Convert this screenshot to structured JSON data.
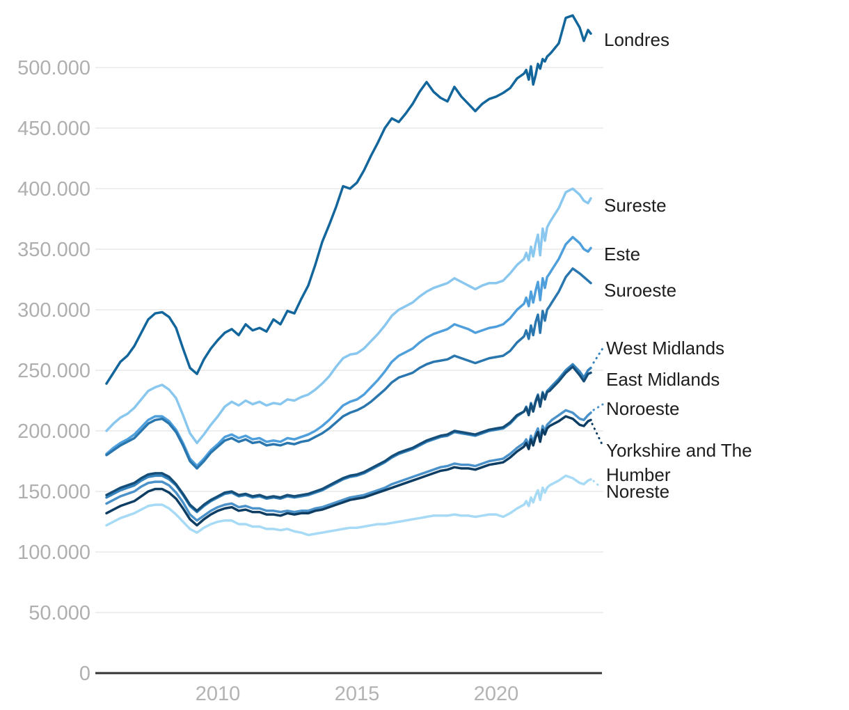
{
  "chart_data": {
    "type": "line",
    "title": "",
    "grid": "horizontal",
    "legend_position": "right-edge-annotations",
    "xlim": [
      2006,
      2023.4
    ],
    "ylim": [
      0,
      545000
    ],
    "style": {
      "background": "#ffffff",
      "grid_color": "#e9e9e9",
      "axis_color": "#333333",
      "tick_label_color": "#b0b0b0",
      "label_color": "#1d1d1d"
    },
    "x_ticks": [
      {
        "value": 2010,
        "label": "2010"
      },
      {
        "value": 2015,
        "label": "2015"
      },
      {
        "value": 2020,
        "label": "2020"
      }
    ],
    "y_ticks": [
      {
        "value": 0,
        "label": "0"
      },
      {
        "value": 50000,
        "label": "50.000"
      },
      {
        "value": 100000,
        "label": "100.000"
      },
      {
        "value": 150000,
        "label": "150.000"
      },
      {
        "value": 200000,
        "label": "200.000"
      },
      {
        "value": 250000,
        "label": "250.000"
      },
      {
        "value": 300000,
        "label": "300.000"
      },
      {
        "value": 350000,
        "label": "350.000"
      },
      {
        "value": 400000,
        "label": "400.000"
      },
      {
        "value": 450000,
        "label": "450.000"
      },
      {
        "value": 500000,
        "label": "500.000"
      }
    ],
    "x": [
      2006,
      2006.25,
      2006.5,
      2006.75,
      2007,
      2007.25,
      2007.5,
      2007.75,
      2008,
      2008.25,
      2008.5,
      2008.75,
      2009,
      2009.25,
      2009.5,
      2009.75,
      2010,
      2010.25,
      2010.5,
      2010.75,
      2011,
      2011.25,
      2011.5,
      2011.75,
      2012,
      2012.25,
      2012.5,
      2012.75,
      2013,
      2013.25,
      2013.5,
      2013.75,
      2014,
      2014.25,
      2014.5,
      2014.75,
      2015,
      2015.25,
      2015.5,
      2015.75,
      2016,
      2016.25,
      2016.5,
      2016.75,
      2017,
      2017.25,
      2017.5,
      2017.75,
      2018,
      2018.25,
      2018.5,
      2018.75,
      2019,
      2019.25,
      2019.5,
      2019.75,
      2020,
      2020.25,
      2020.5,
      2020.75,
      2021,
      2021.08,
      2021.17,
      2021.25,
      2021.33,
      2021.42,
      2021.5,
      2021.58,
      2021.67,
      2021.75,
      2021.83,
      2021.92,
      2022,
      2022.25,
      2022.5,
      2022.75,
      2023,
      2023.15,
      2023.3,
      2023.4
    ],
    "series": [
      {
        "name": "Noreste",
        "color": "#a6daf5",
        "values": [
          122000,
          125000,
          128000,
          130000,
          132000,
          135000,
          138000,
          139000,
          139000,
          136000,
          131000,
          125000,
          119000,
          116000,
          120000,
          123000,
          125000,
          126000,
          126000,
          123000,
          123000,
          121000,
          121000,
          119000,
          119000,
          118000,
          119000,
          117000,
          116000,
          114000,
          115000,
          116000,
          117000,
          118000,
          119000,
          120000,
          120000,
          121000,
          122000,
          123000,
          123000,
          124000,
          125000,
          126000,
          127000,
          128000,
          129000,
          130000,
          130000,
          130000,
          131000,
          130000,
          130000,
          129000,
          130000,
          131000,
          131000,
          129000,
          132000,
          136000,
          139000,
          142000,
          138000,
          145000,
          141000,
          147000,
          151000,
          143000,
          153000,
          149000,
          153000,
          155000,
          156000,
          159000,
          163000,
          161000,
          157000,
          156000,
          159000,
          160000
        ]
      },
      {
        "name": "Sureste",
        "color": "#89c7ef",
        "values": [
          200000,
          206000,
          211000,
          214000,
          219000,
          226000,
          233000,
          236000,
          238000,
          234000,
          227000,
          213000,
          198000,
          190000,
          197000,
          205000,
          212000,
          220000,
          224000,
          221000,
          225000,
          222000,
          224000,
          221000,
          223000,
          222000,
          226000,
          225000,
          228000,
          230000,
          234000,
          239000,
          245000,
          253000,
          260000,
          263000,
          264000,
          268000,
          274000,
          280000,
          287000,
          295000,
          300000,
          303000,
          306000,
          311000,
          315000,
          318000,
          320000,
          322000,
          326000,
          323000,
          320000,
          317000,
          320000,
          322000,
          322000,
          324000,
          330000,
          337000,
          342000,
          347000,
          341000,
          352000,
          344000,
          355000,
          362000,
          345000,
          367000,
          357000,
          368000,
          372000,
          375000,
          384000,
          397000,
          400000,
          395000,
          390000,
          388000,
          392000
        ]
      },
      {
        "name": "Este",
        "color": "#4f9fdd",
        "values": [
          181000,
          186000,
          190000,
          193000,
          197000,
          203000,
          209000,
          212000,
          212000,
          208000,
          201000,
          190000,
          177000,
          171000,
          177000,
          184000,
          189000,
          195000,
          197000,
          194000,
          196000,
          193000,
          194000,
          191000,
          192000,
          191000,
          194000,
          193000,
          195000,
          197000,
          200000,
          204000,
          209000,
          215000,
          221000,
          224000,
          226000,
          230000,
          236000,
          242000,
          249000,
          257000,
          262000,
          265000,
          268000,
          273000,
          277000,
          280000,
          282000,
          284000,
          288000,
          286000,
          284000,
          281000,
          283000,
          285000,
          286000,
          288000,
          293000,
          300000,
          305000,
          310000,
          303000,
          315000,
          306000,
          316000,
          323000,
          308000,
          326000,
          318000,
          327000,
          330000,
          333000,
          342000,
          354000,
          360000,
          355000,
          350000,
          348000,
          351000
        ]
      },
      {
        "name": "Suroeste",
        "color": "#2a76ae",
        "values": [
          180000,
          184000,
          188000,
          191000,
          194000,
          200000,
          206000,
          209000,
          210000,
          206000,
          199000,
          188000,
          175000,
          169000,
          175000,
          182000,
          187000,
          192000,
          194000,
          191000,
          193000,
          190000,
          191000,
          188000,
          189000,
          188000,
          190000,
          189000,
          191000,
          192000,
          195000,
          198000,
          202000,
          207000,
          212000,
          215000,
          217000,
          220000,
          224000,
          229000,
          234000,
          240000,
          244000,
          246000,
          248000,
          252000,
          255000,
          257000,
          258000,
          259000,
          262000,
          260000,
          258000,
          256000,
          258000,
          260000,
          261000,
          262000,
          266000,
          273000,
          278000,
          283000,
          276000,
          287000,
          279000,
          290000,
          296000,
          281000,
          299000,
          291000,
          300000,
          303000,
          306000,
          315000,
          327000,
          334000,
          330000,
          327000,
          324000,
          322000
        ]
      },
      {
        "name": "Noroeste",
        "color": "#4a92c9",
        "values": [
          140000,
          143000,
          146000,
          148000,
          150000,
          154000,
          157000,
          158000,
          158000,
          155000,
          149000,
          141000,
          131000,
          126000,
          130000,
          134000,
          137000,
          139000,
          140000,
          137000,
          138000,
          136000,
          136000,
          134000,
          134000,
          133000,
          134000,
          133000,
          134000,
          134000,
          136000,
          137000,
          139000,
          141000,
          143000,
          145000,
          146000,
          147000,
          149000,
          151000,
          153000,
          156000,
          158000,
          160000,
          162000,
          164000,
          166000,
          168000,
          170000,
          171000,
          173000,
          172000,
          172000,
          171000,
          173000,
          175000,
          176000,
          177000,
          181000,
          186000,
          190000,
          193000,
          188000,
          196000,
          191000,
          198000,
          202000,
          194000,
          204000,
          200000,
          205000,
          207000,
          209000,
          213000,
          217000,
          215000,
          210000,
          209000,
          213000,
          215000
        ]
      },
      {
        "name": "Yorkshire and The Humber",
        "color": "#0e3d63",
        "values": [
          132000,
          135000,
          138000,
          140000,
          142000,
          146000,
          150000,
          152000,
          152000,
          149000,
          144000,
          136000,
          127000,
          122000,
          127000,
          131000,
          134000,
          136000,
          137000,
          134000,
          135000,
          133000,
          133000,
          131000,
          131000,
          130000,
          132000,
          131000,
          132000,
          132000,
          134000,
          135000,
          137000,
          139000,
          141000,
          143000,
          144000,
          145000,
          147000,
          149000,
          151000,
          153000,
          155000,
          157000,
          159000,
          161000,
          163000,
          165000,
          167000,
          168000,
          170000,
          169000,
          169000,
          168000,
          170000,
          172000,
          173000,
          174000,
          178000,
          183000,
          187000,
          190000,
          185000,
          193000,
          188000,
          195000,
          199000,
          191000,
          201000,
          197000,
          202000,
          204000,
          205000,
          208000,
          212000,
          210000,
          205000,
          204000,
          208000,
          209000
        ]
      },
      {
        "name": "West Midlands",
        "color": "#3583bc",
        "values": [
          145000,
          148000,
          151000,
          153000,
          155000,
          159000,
          162000,
          163000,
          163000,
          160000,
          155000,
          147000,
          138000,
          133000,
          138000,
          142000,
          145000,
          148000,
          149000,
          146000,
          147000,
          145000,
          146000,
          144000,
          145000,
          144000,
          146000,
          145000,
          146000,
          147000,
          149000,
          151000,
          154000,
          157000,
          160000,
          162000,
          163000,
          165000,
          168000,
          171000,
          174000,
          178000,
          181000,
          183000,
          185000,
          188000,
          191000,
          193000,
          195000,
          196000,
          199000,
          198000,
          197000,
          196000,
          198000,
          200000,
          201000,
          202000,
          206000,
          212000,
          216000,
          220000,
          214000,
          223000,
          217000,
          225000,
          230000,
          221000,
          232000,
          227000,
          233000,
          235000,
          237000,
          243000,
          250000,
          255000,
          249000,
          244000,
          250000,
          252000
        ]
      },
      {
        "name": "East Midlands",
        "color": "#164e7a",
        "values": [
          147000,
          150000,
          153000,
          155000,
          157000,
          161000,
          164000,
          165000,
          165000,
          162000,
          156000,
          148000,
          139000,
          134000,
          139000,
          143000,
          146000,
          149000,
          150000,
          147000,
          148000,
          146000,
          147000,
          145000,
          146000,
          145000,
          147000,
          146000,
          147000,
          148000,
          150000,
          152000,
          155000,
          158000,
          161000,
          163000,
          164000,
          166000,
          169000,
          172000,
          175000,
          179000,
          182000,
          184000,
          186000,
          189000,
          192000,
          194000,
          196000,
          197000,
          200000,
          199000,
          198000,
          197000,
          199000,
          201000,
          202000,
          203000,
          207000,
          213000,
          216000,
          219000,
          213000,
          222000,
          216000,
          224000,
          229000,
          220000,
          231000,
          226000,
          232000,
          233000,
          235000,
          241000,
          248000,
          253000,
          246000,
          241000,
          247000,
          248000
        ]
      },
      {
        "name": "Londres",
        "color": "#12669c",
        "values": [
          239000,
          248000,
          257000,
          262000,
          270000,
          281000,
          292000,
          297000,
          298000,
          294000,
          285000,
          268000,
          252000,
          247000,
          259000,
          268000,
          275000,
          281000,
          284000,
          279000,
          288000,
          283000,
          285000,
          282000,
          292000,
          288000,
          299000,
          297000,
          309000,
          320000,
          337000,
          356000,
          370000,
          385000,
          402000,
          400000,
          405000,
          415000,
          427000,
          438000,
          450000,
          458000,
          455000,
          462000,
          470000,
          480000,
          488000,
          480000,
          475000,
          472000,
          484000,
          476000,
          470000,
          464000,
          470000,
          474000,
          476000,
          479000,
          483000,
          491000,
          495000,
          498000,
          490000,
          501000,
          486000,
          494000,
          503000,
          499000,
          507000,
          505000,
          509000,
          511000,
          513000,
          520000,
          541000,
          543000,
          533000,
          522000,
          531000,
          528000
        ]
      }
    ]
  }
}
